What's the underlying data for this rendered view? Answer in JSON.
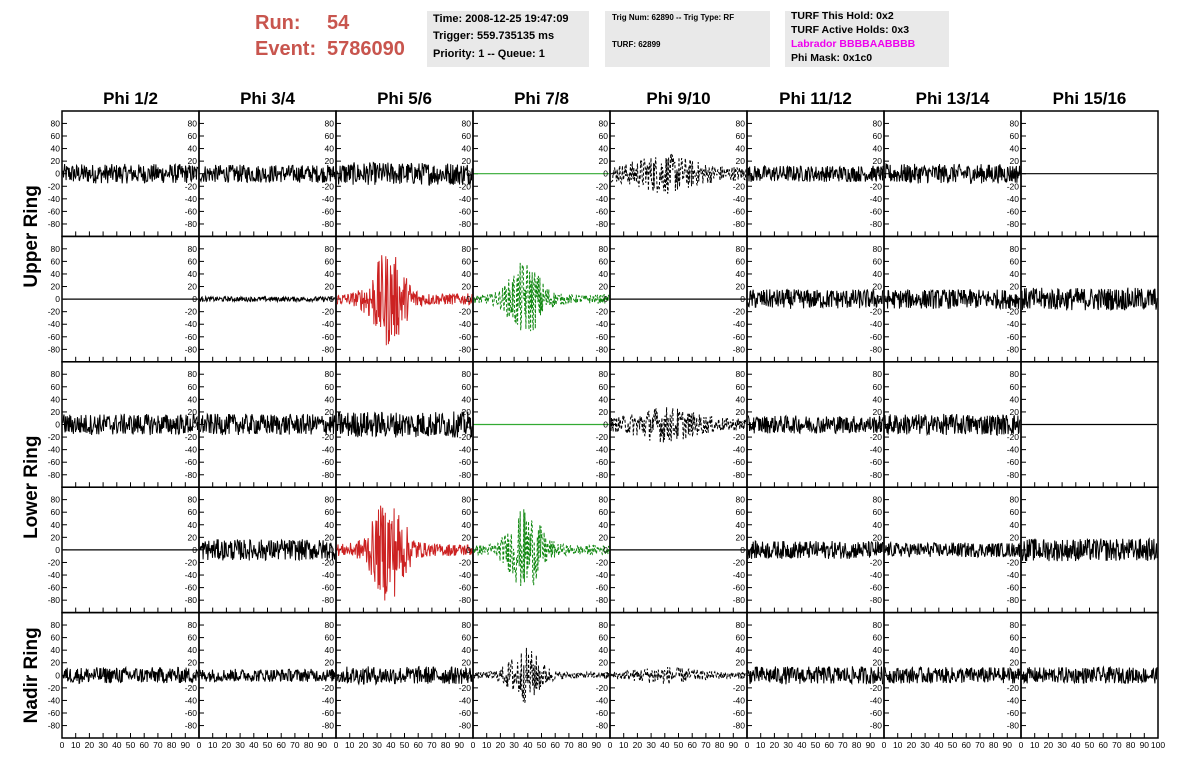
{
  "header": {
    "run_label": "Run:",
    "run_value": "54",
    "event_label": "Event:",
    "event_value": "5786090",
    "time": "Time: 2008-12-25 19:47:09",
    "trigger": "Trigger: 559.735135 ms",
    "priority": "Priority: 1 -- Queue: 1",
    "trig_num": "Trig Num: 62890 -- Trig Type: RF",
    "turf": "TURF: 62899",
    "turf_this_hold": "TURF This Hold: 0x2",
    "turf_active_holds": "TURF Active Holds: 0x3",
    "labrador": "Labrador BBBBAABBBB",
    "phi_mask": "Phi Mask: 0x1c0"
  },
  "colors": {
    "header_red": "#c8554e",
    "box_bg": "#e9e9e9",
    "labrador_magenta": "#ee00ee",
    "trace_black": "#000000",
    "trace_red": "#cc2222",
    "trace_green": "#118811",
    "flat_green": "#33aa33"
  },
  "chart_data": {
    "type": "line",
    "description_columns": [
      "Phi 1/2",
      "Phi 3/4",
      "Phi 5/6",
      "Phi 7/8",
      "Phi 9/10",
      "Phi 11/12",
      "Phi 13/14",
      "Phi 15/16"
    ],
    "row_groups": [
      "Upper Ring",
      "Lower Ring",
      "Nadir Ring"
    ],
    "rows": 5,
    "x_ticks": [
      0,
      10,
      20,
      30,
      40,
      50,
      60,
      70,
      80,
      90,
      100
    ],
    "x_tick_labels": [
      "0",
      "10",
      "20",
      "30",
      "40",
      "50",
      "60",
      "70",
      "80",
      "90",
      "100"
    ],
    "y_ticks": [
      -80,
      -60,
      -40,
      -20,
      0,
      20,
      40,
      60,
      80
    ],
    "y_tick_labels": [
      "-80",
      "-60",
      "-40",
      "-20",
      "0",
      "20",
      "40",
      "60",
      "80"
    ],
    "xlim": [
      0,
      100
    ],
    "ylim": [
      -95,
      95
    ],
    "panels": [
      [
        {
          "style": "noise",
          "amp": 12,
          "color": "trace_black"
        },
        {
          "style": "noise",
          "amp": 11,
          "color": "trace_black"
        },
        {
          "style": "noise",
          "amp": 14,
          "color": "trace_black"
        },
        {
          "style": "flat",
          "color": "flat_green"
        },
        {
          "style": "dashed",
          "amp": 18,
          "color": "trace_black"
        },
        {
          "style": "noise",
          "amp": 10,
          "color": "trace_black"
        },
        {
          "style": "noise",
          "amp": 12,
          "color": "trace_black"
        },
        {
          "style": "flat",
          "color": "trace_black"
        }
      ],
      [
        {
          "style": "flat",
          "color": "trace_black"
        },
        {
          "style": "noise",
          "amp": 3,
          "color": "trace_black"
        },
        {
          "style": "pulse",
          "amp": 28,
          "color": "trace_red"
        },
        {
          "style": "dashed-pulse",
          "amp": 22,
          "color": "trace_green"
        },
        {
          "style": "flat",
          "color": "trace_black"
        },
        {
          "style": "noise",
          "amp": 12,
          "color": "trace_black"
        },
        {
          "style": "noise",
          "amp": 12,
          "color": "trace_black"
        },
        {
          "style": "noise",
          "amp": 14,
          "color": "trace_black"
        }
      ],
      [
        {
          "style": "noise",
          "amp": 13,
          "color": "trace_black"
        },
        {
          "style": "noise",
          "amp": 13,
          "color": "trace_black"
        },
        {
          "style": "noise",
          "amp": 16,
          "color": "trace_black"
        },
        {
          "style": "flat",
          "color": "flat_green"
        },
        {
          "style": "dashed",
          "amp": 16,
          "color": "trace_black"
        },
        {
          "style": "noise",
          "amp": 11,
          "color": "trace_black"
        },
        {
          "style": "noise",
          "amp": 13,
          "color": "trace_black"
        },
        {
          "style": "flat",
          "color": "trace_black"
        }
      ],
      [
        {
          "style": "flat",
          "color": "trace_black"
        },
        {
          "style": "noise",
          "amp": 13,
          "color": "trace_black"
        },
        {
          "style": "pulse",
          "amp": 30,
          "color": "trace_red"
        },
        {
          "style": "dashed-pulse",
          "amp": 24,
          "color": "trace_green"
        },
        {
          "style": "flat",
          "color": "trace_black"
        },
        {
          "style": "noise",
          "amp": 11,
          "color": "trace_black"
        },
        {
          "style": "noise",
          "amp": 9,
          "color": "trace_black"
        },
        {
          "style": "noise",
          "amp": 14,
          "color": "trace_black"
        }
      ],
      [
        {
          "style": "noise",
          "amp": 10,
          "color": "trace_black"
        },
        {
          "style": "noise",
          "amp": 8,
          "color": "trace_black"
        },
        {
          "style": "noise",
          "amp": 11,
          "color": "trace_black"
        },
        {
          "style": "dashed-pulse",
          "amp": 16,
          "color": "trace_black"
        },
        {
          "style": "dashed",
          "amp": 8,
          "color": "trace_black"
        },
        {
          "style": "noise",
          "amp": 11,
          "color": "trace_black"
        },
        {
          "style": "noise",
          "amp": 10,
          "color": "trace_black"
        },
        {
          "style": "noise",
          "amp": 10,
          "color": "trace_black"
        }
      ]
    ]
  }
}
